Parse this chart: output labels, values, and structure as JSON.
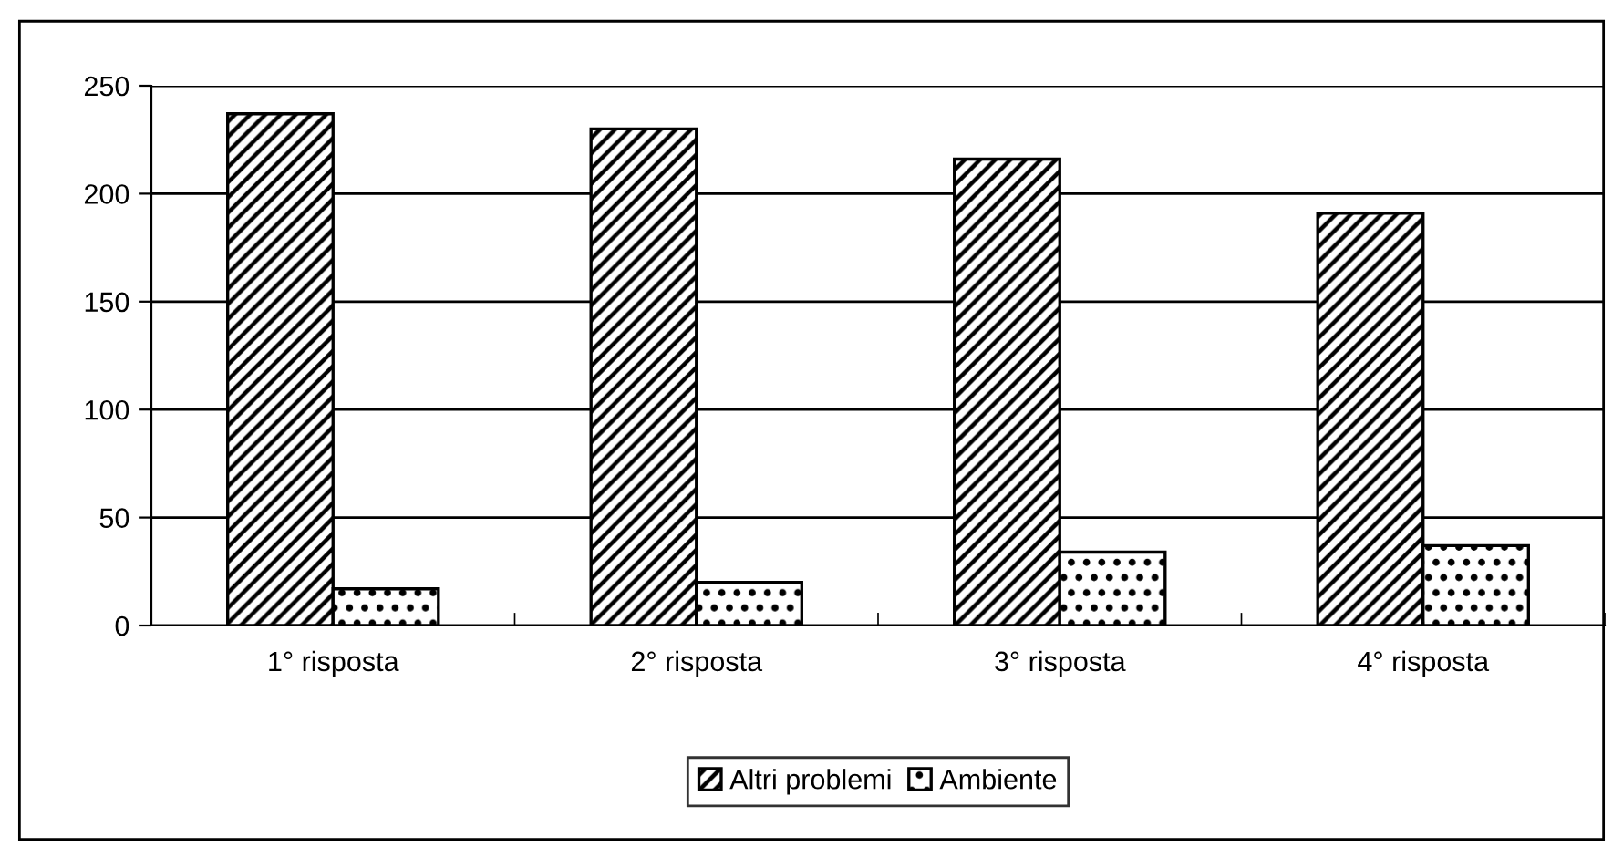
{
  "chart_data": {
    "type": "bar",
    "categories": [
      "1° risposta",
      "2° risposta",
      "3° risposta",
      "4° risposta"
    ],
    "series": [
      {
        "name": "Altri problemi",
        "color": "#000000",
        "values": [
          237,
          230,
          216,
          191
        ]
      },
      {
        "name": "Ambiente",
        "color": "#000000",
        "values": [
          17,
          20,
          34,
          37
        ]
      }
    ],
    "ylim": [
      0,
      250
    ],
    "yticks": [
      0,
      50,
      100,
      150,
      200,
      250
    ],
    "grid": "y",
    "legend": "bottom"
  }
}
